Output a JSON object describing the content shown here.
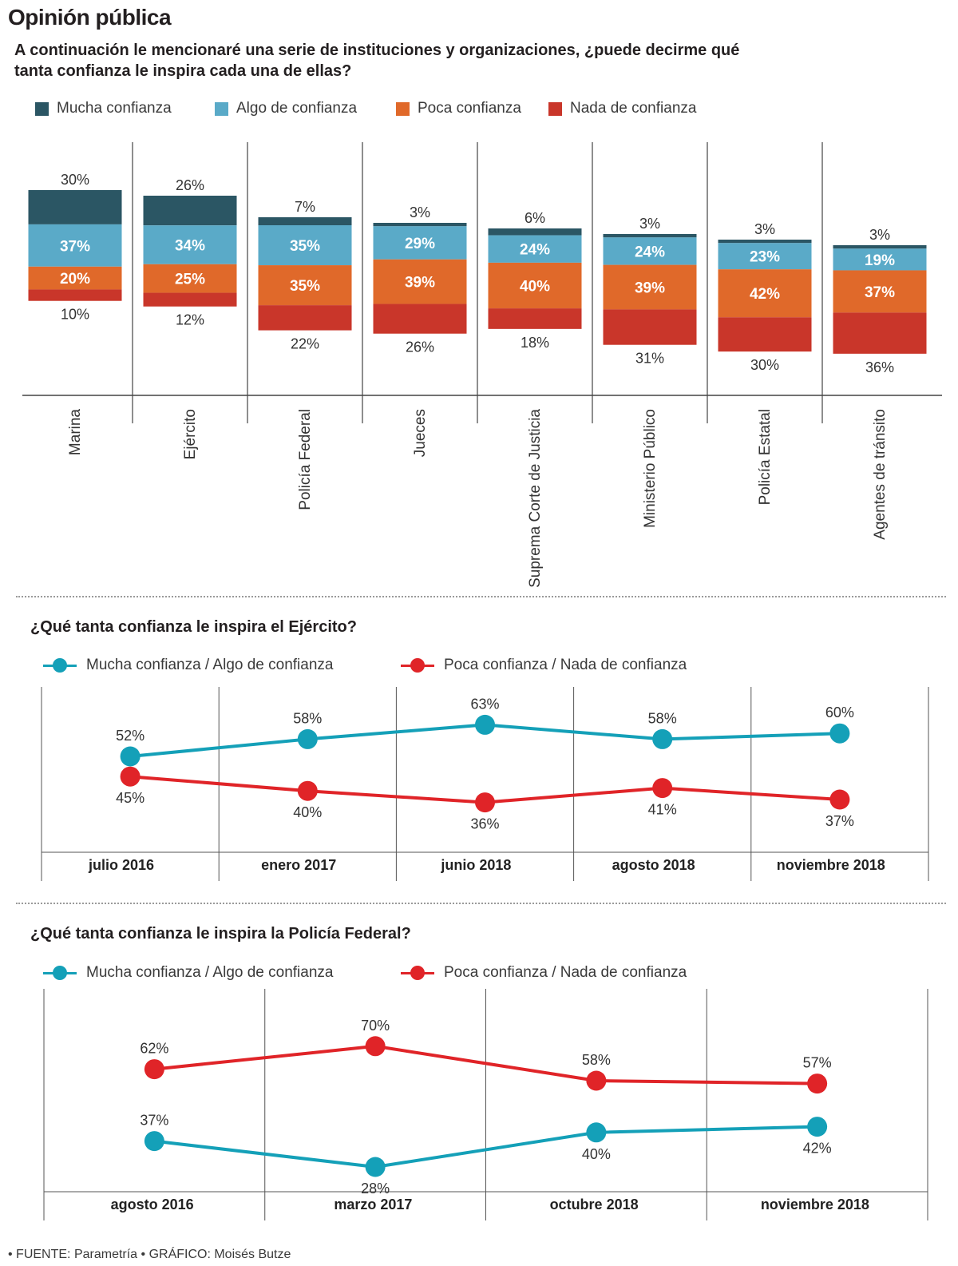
{
  "title": "Opinión pública",
  "subtitle": "A continuación le mencionaré una serie de instituciones y organizaciones, ¿puede decirme qué tanta confianza le inspira cada una de ellas?",
  "colors": {
    "mucha": "#2b5664",
    "algo": "#5aaac8",
    "poca": "#e0692a",
    "nada": "#c9362a",
    "teal_line": "#14a0b8",
    "red_line": "#e02428"
  },
  "legend_bars": [
    {
      "label": "Mucha confianza",
      "color": "#2b5664"
    },
    {
      "label": "Algo de confianza",
      "color": "#5aaac8"
    },
    {
      "label": "Poca confianza",
      "color": "#e0692a"
    },
    {
      "label": "Nada de confianza",
      "color": "#c9362a"
    }
  ],
  "chart_data": [
    {
      "type": "bar",
      "stacked": true,
      "categories": [
        "Marina",
        "Ejército",
        "Policía Federal",
        "Jueces",
        "Suprema Corte de Justicia",
        "Ministerio Público",
        "Policía Estatal",
        "Agentes de tránsito"
      ],
      "series": [
        {
          "name": "Mucha confianza",
          "values": [
            30,
            26,
            7,
            3,
            6,
            3,
            3,
            3
          ]
        },
        {
          "name": "Algo de confianza",
          "values": [
            37,
            34,
            35,
            29,
            24,
            24,
            23,
            19
          ]
        },
        {
          "name": "Poca confianza",
          "values": [
            20,
            25,
            35,
            39,
            40,
            39,
            42,
            37
          ]
        },
        {
          "name": "Nada de confianza",
          "values": [
            10,
            12,
            22,
            26,
            18,
            31,
            30,
            36
          ]
        }
      ],
      "legend": "top"
    },
    {
      "type": "line",
      "title": "¿Qué tanta confianza le inspira el Ejército?",
      "x": [
        "julio 2016",
        "enero 2017",
        "junio 2018",
        "agosto 2018",
        "noviembre 2018"
      ],
      "series": [
        {
          "name": "Mucha confianza / Algo de confianza",
          "values": [
            52,
            58,
            63,
            58,
            60
          ]
        },
        {
          "name": "Poca confianza / Nada de confianza",
          "values": [
            45,
            40,
            36,
            41,
            37
          ]
        }
      ],
      "legend": "top"
    },
    {
      "type": "line",
      "title": "¿Qué tanta confianza le inspira la Policía Federal?",
      "x": [
        "agosto 2016",
        "marzo 2017",
        "octubre 2018",
        "noviembre 2018"
      ],
      "series": [
        {
          "name": "Mucha confianza / Algo de confianza",
          "values": [
            37,
            28,
            40,
            42
          ]
        },
        {
          "name": "Poca confianza / Nada de confianza",
          "values": [
            62,
            70,
            58,
            57
          ]
        }
      ],
      "legend": "top"
    }
  ],
  "footer": "• FUENTE: Parametría • GRÁFICO: Moisés Butze"
}
